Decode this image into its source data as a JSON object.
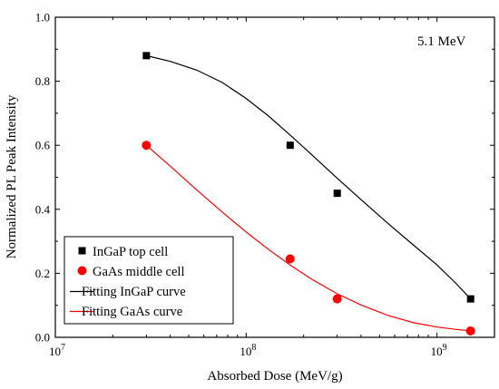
{
  "chart_data": {
    "type": "scatter",
    "title": "",
    "xlabel": "Absorbed Dose (MeV/g)",
    "ylabel": "Normalized PL Peak Intensity",
    "xscale": "log",
    "xlim": [
      10000000,
      2000000000
    ],
    "ylim": [
      0.0,
      1.0
    ],
    "x_major_ticks": [
      {
        "value": 10000000,
        "base": "10",
        "exp": "7"
      },
      {
        "value": 100000000,
        "base": "10",
        "exp": "8"
      },
      {
        "value": 1000000000,
        "base": "10",
        "exp": "9"
      }
    ],
    "y_ticks": [
      {
        "value": 0.0,
        "label": "0.0"
      },
      {
        "value": 0.2,
        "label": "0.2"
      },
      {
        "value": 0.4,
        "label": "0.4"
      },
      {
        "value": 0.6,
        "label": "0.6"
      },
      {
        "value": 0.8,
        "label": "0.8"
      },
      {
        "value": 1.0,
        "label": "1.0"
      }
    ],
    "annotation": "5.1 MeV",
    "legend_position": "bottom-left",
    "grid": false,
    "series": [
      {
        "name": "InGaP top cell",
        "kind": "points",
        "marker": "square",
        "color": "#000000",
        "x": [
          30000000,
          170000000,
          300000000,
          1500000000
        ],
        "y": [
          0.88,
          0.6,
          0.45,
          0.12
        ]
      },
      {
        "name": "GaAs middle cell",
        "kind": "points",
        "marker": "circle",
        "color": "#ff0000",
        "x": [
          30000000,
          170000000,
          300000000,
          1500000000
        ],
        "y": [
          0.6,
          0.245,
          0.12,
          0.02
        ]
      },
      {
        "name": "Fitting InGaP curve",
        "kind": "line",
        "color": "#000000",
        "x": [
          30000000,
          40000000,
          55000000,
          75000000,
          100000000,
          130000000,
          170000000,
          220000000,
          300000000,
          400000000,
          550000000,
          750000000,
          1000000000,
          1250000000,
          1500000000
        ],
        "y": [
          0.88,
          0.862,
          0.835,
          0.796,
          0.746,
          0.693,
          0.632,
          0.571,
          0.497,
          0.43,
          0.357,
          0.289,
          0.226,
          0.17,
          0.12
        ]
      },
      {
        "name": "Fitting GaAs curve",
        "kind": "line",
        "color": "#ff0000",
        "x": [
          30000000,
          40000000,
          55000000,
          75000000,
          100000000,
          130000000,
          170000000,
          220000000,
          300000000,
          400000000,
          550000000,
          750000000,
          1000000000,
          1250000000,
          1500000000
        ],
        "y": [
          0.6,
          0.535,
          0.461,
          0.391,
          0.329,
          0.276,
          0.226,
          0.182,
          0.136,
          0.101,
          0.069,
          0.046,
          0.032,
          0.025,
          0.02
        ]
      }
    ]
  }
}
